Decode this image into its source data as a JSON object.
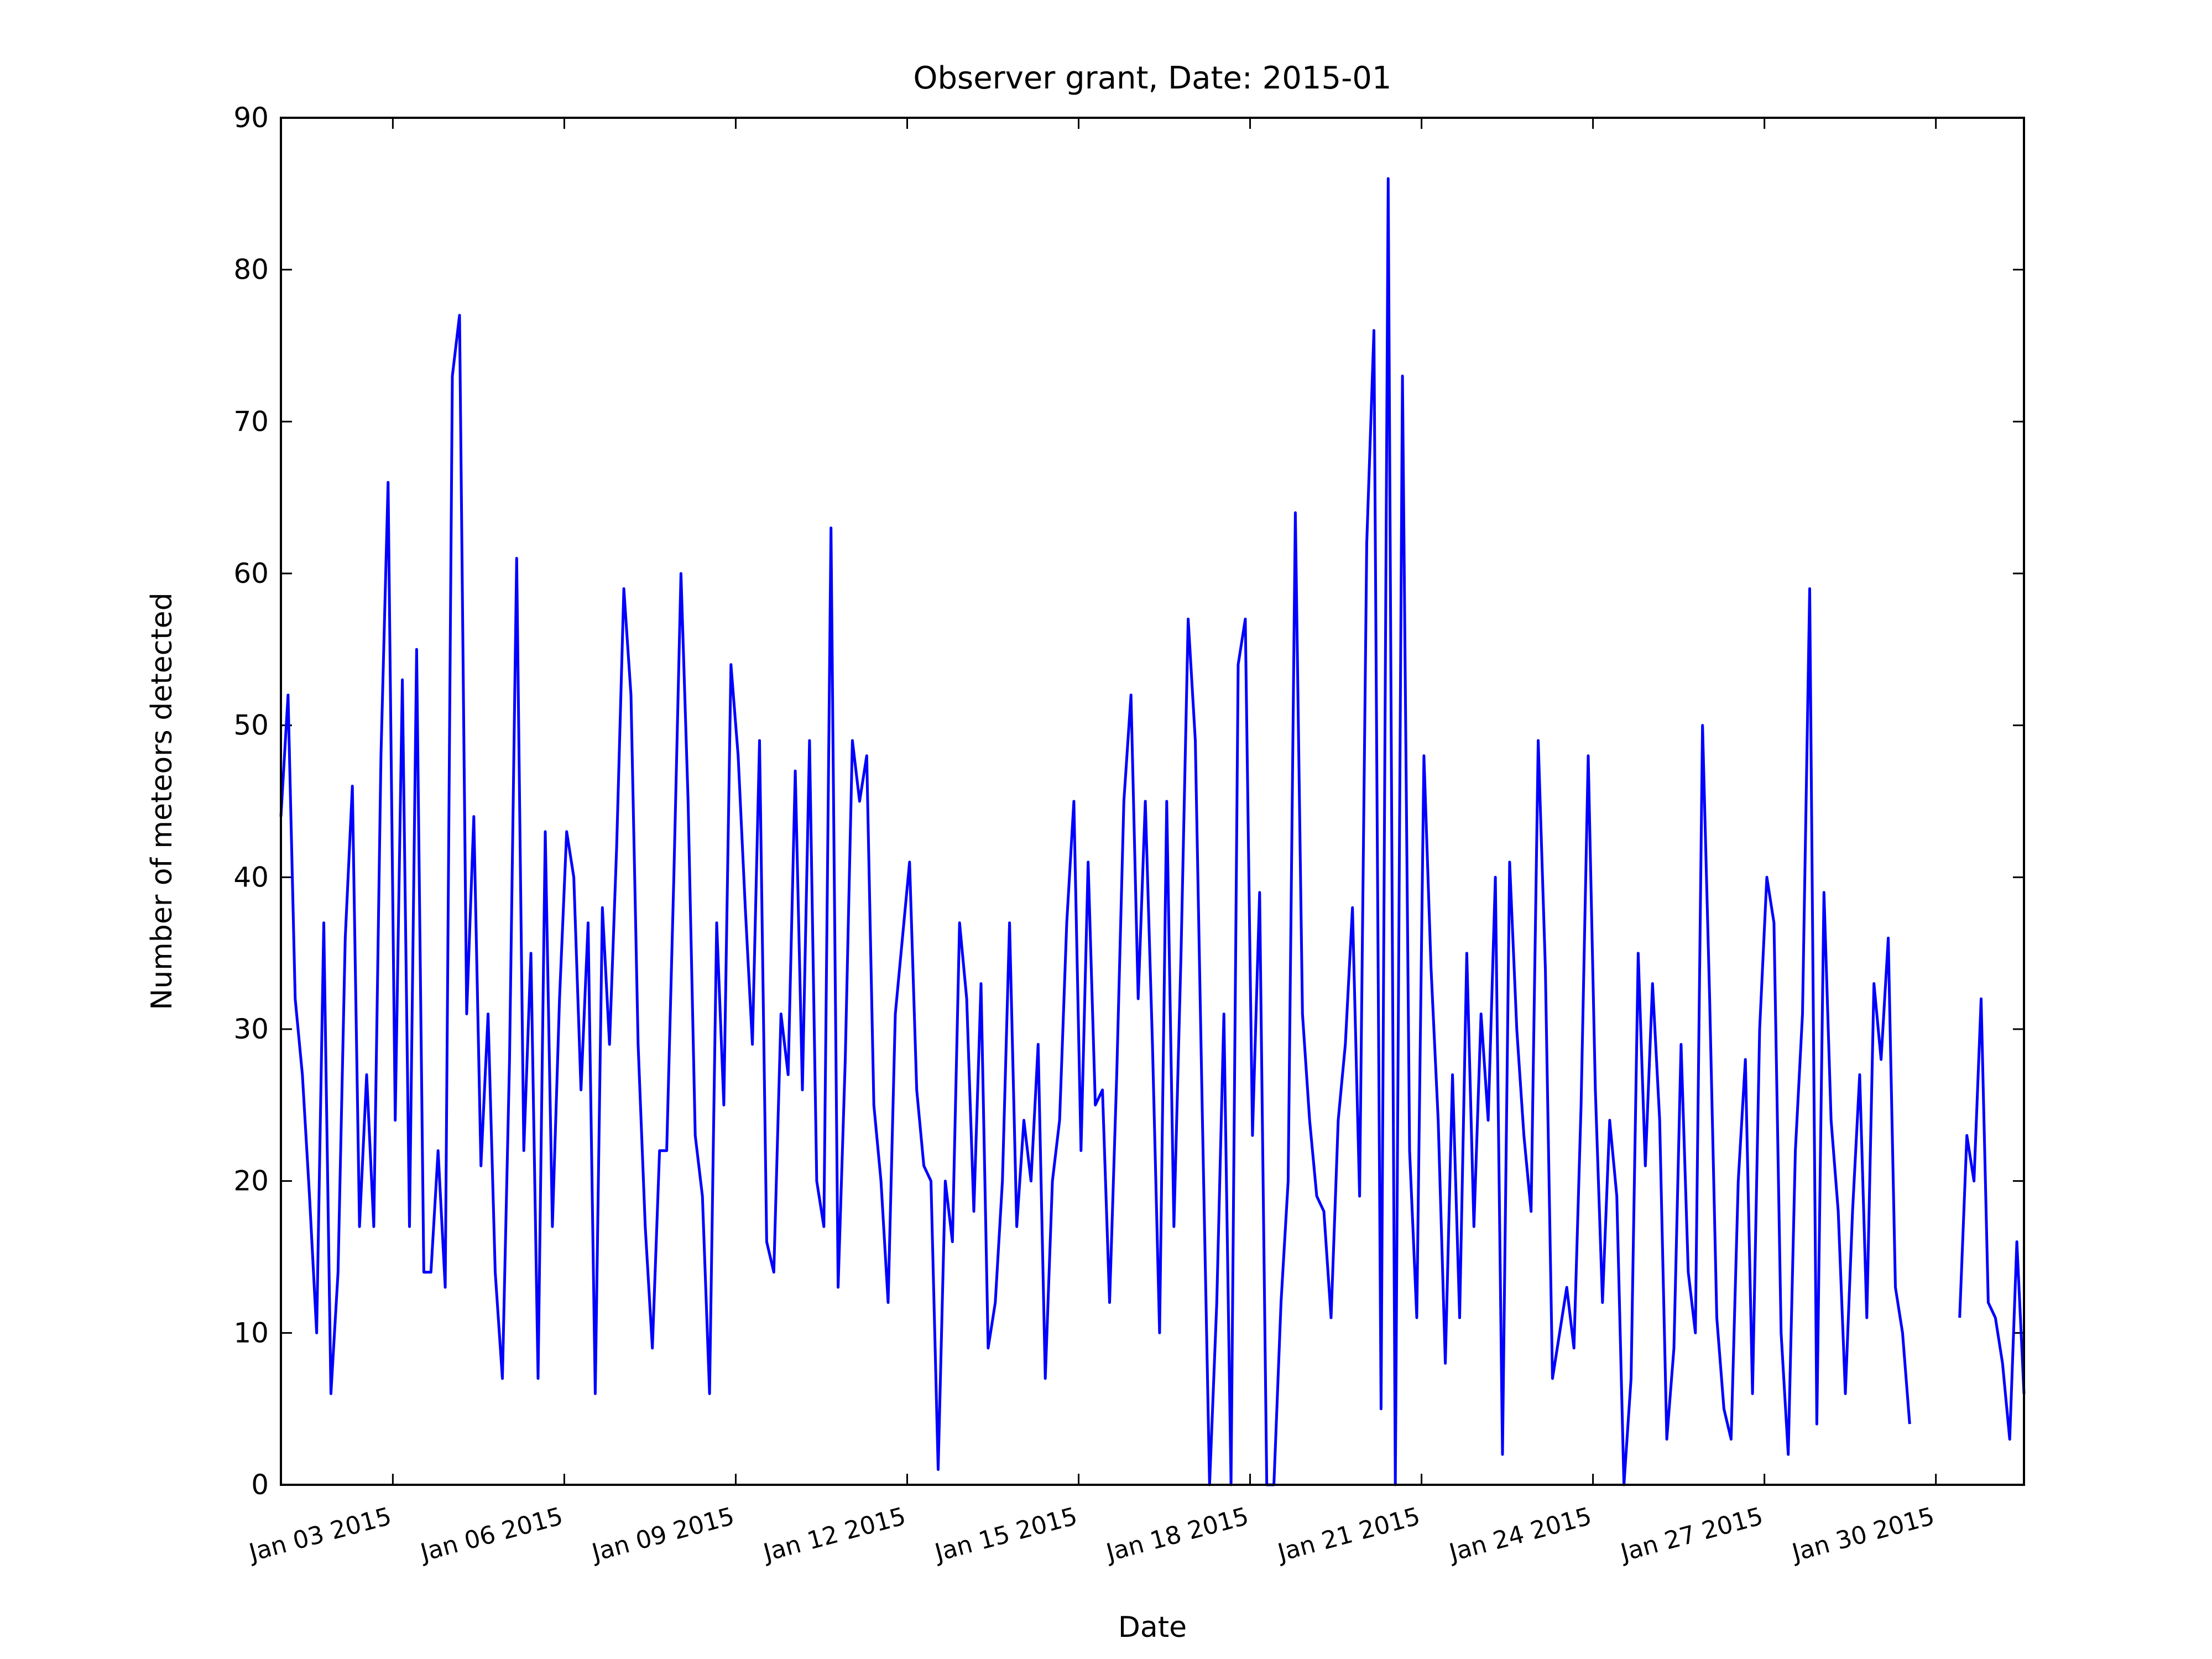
{
  "chart_data": {
    "type": "line",
    "title": "Observer grant, Date: 2015-01",
    "x_label": "Date",
    "y_label": "Number of meteors detected",
    "color": "#0000ff",
    "x": [
      "2015-01-01 01:00",
      "2015-01-01 04:00",
      "2015-01-01 07:00",
      "2015-01-01 10:00",
      "2015-01-01 13:00",
      "2015-01-01 16:00",
      "2015-01-01 19:00",
      "2015-01-01 22:00",
      "2015-01-02 01:00",
      "2015-01-02 04:00",
      "2015-01-02 07:00",
      "2015-01-02 10:00",
      "2015-01-02 13:00",
      "2015-01-02 16:00",
      "2015-01-02 19:00",
      "2015-01-02 22:00",
      "2015-01-03 01:00",
      "2015-01-03 04:00",
      "2015-01-03 07:00",
      "2015-01-03 10:00",
      "2015-01-03 13:00",
      "2015-01-03 16:00",
      "2015-01-03 19:00",
      "2015-01-03 22:00",
      "2015-01-04 01:00",
      "2015-01-04 04:00",
      "2015-01-04 07:00",
      "2015-01-04 10:00",
      "2015-01-04 13:00",
      "2015-01-04 16:00",
      "2015-01-04 19:00",
      "2015-01-04 22:00",
      "2015-01-05 01:00",
      "2015-01-05 04:00",
      "2015-01-05 07:00",
      "2015-01-05 10:00",
      "2015-01-05 13:00",
      "2015-01-05 16:00",
      "2015-01-05 19:00",
      "2015-01-05 22:00",
      "2015-01-06 01:00",
      "2015-01-06 04:00",
      "2015-01-06 07:00",
      "2015-01-06 10:00",
      "2015-01-06 13:00",
      "2015-01-06 16:00",
      "2015-01-06 19:00",
      "2015-01-06 22:00",
      "2015-01-07 01:00",
      "2015-01-07 04:00",
      "2015-01-07 07:00",
      "2015-01-07 10:00",
      "2015-01-07 13:00",
      "2015-01-07 16:00",
      "2015-01-07 19:00",
      "2015-01-07 22:00",
      "2015-01-08 01:00",
      "2015-01-08 04:00",
      "2015-01-08 07:00",
      "2015-01-08 10:00",
      "2015-01-08 13:00",
      "2015-01-08 16:00",
      "2015-01-08 19:00",
      "2015-01-08 22:00",
      "2015-01-09 01:00",
      "2015-01-09 04:00",
      "2015-01-09 07:00",
      "2015-01-09 10:00",
      "2015-01-09 13:00",
      "2015-01-09 16:00",
      "2015-01-09 19:00",
      "2015-01-09 22:00",
      "2015-01-10 01:00",
      "2015-01-10 04:00",
      "2015-01-10 07:00",
      "2015-01-10 10:00",
      "2015-01-10 13:00",
      "2015-01-10 16:00",
      "2015-01-10 19:00",
      "2015-01-10 22:00",
      "2015-01-11 01:00",
      "2015-01-11 04:00",
      "2015-01-11 07:00",
      "2015-01-11 10:00",
      "2015-01-11 13:00",
      "2015-01-11 16:00",
      "2015-01-11 19:00",
      "2015-01-11 22:00",
      "2015-01-12 01:00",
      "2015-01-12 04:00",
      "2015-01-12 07:00",
      "2015-01-12 10:00",
      "2015-01-12 13:00",
      "2015-01-12 16:00",
      "2015-01-12 19:00",
      "2015-01-12 22:00",
      "2015-01-13 01:00",
      "2015-01-13 04:00",
      "2015-01-13 07:00",
      "2015-01-13 10:00",
      "2015-01-13 13:00",
      "2015-01-13 16:00",
      "2015-01-13 19:00",
      "2015-01-13 22:00",
      "2015-01-14 01:00",
      "2015-01-14 04:00",
      "2015-01-14 07:00",
      "2015-01-14 10:00",
      "2015-01-14 13:00",
      "2015-01-14 16:00",
      "2015-01-14 19:00",
      "2015-01-14 22:00",
      "2015-01-15 01:00",
      "2015-01-15 04:00",
      "2015-01-15 07:00",
      "2015-01-15 10:00",
      "2015-01-15 13:00",
      "2015-01-15 16:00",
      "2015-01-15 19:00",
      "2015-01-15 22:00",
      "2015-01-16 01:00",
      "2015-01-16 04:00",
      "2015-01-16 07:00",
      "2015-01-16 10:00",
      "2015-01-16 13:00",
      "2015-01-16 16:00",
      "2015-01-16 19:00",
      "2015-01-16 22:00",
      "2015-01-17 01:00",
      "2015-01-17 04:00",
      "2015-01-17 07:00",
      "2015-01-17 10:00",
      "2015-01-17 13:00",
      "2015-01-17 16:00",
      "2015-01-17 19:00",
      "2015-01-17 22:00",
      "2015-01-18 01:00",
      "2015-01-18 04:00",
      "2015-01-18 07:00",
      "2015-01-18 10:00",
      "2015-01-18 13:00",
      "2015-01-18 16:00",
      "2015-01-18 19:00",
      "2015-01-18 22:00",
      "2015-01-19 01:00",
      "2015-01-19 04:00",
      "2015-01-19 07:00",
      "2015-01-19 10:00",
      "2015-01-19 13:00",
      "2015-01-19 16:00",
      "2015-01-19 19:00",
      "2015-01-19 22:00",
      "2015-01-20 01:00",
      "2015-01-20 04:00",
      "2015-01-20 07:00",
      "2015-01-20 10:00",
      "2015-01-20 13:00",
      "2015-01-20 16:00",
      "2015-01-20 19:00",
      "2015-01-20 22:00",
      "2015-01-21 01:00",
      "2015-01-21 04:00",
      "2015-01-21 07:00",
      "2015-01-21 10:00",
      "2015-01-21 13:00",
      "2015-01-21 16:00",
      "2015-01-21 19:00",
      "2015-01-21 22:00",
      "2015-01-22 01:00",
      "2015-01-22 04:00",
      "2015-01-22 07:00",
      "2015-01-22 10:00",
      "2015-01-22 13:00",
      "2015-01-22 16:00",
      "2015-01-22 19:00",
      "2015-01-22 22:00",
      "2015-01-23 01:00",
      "2015-01-23 04:00",
      "2015-01-23 07:00",
      "2015-01-23 10:00",
      "2015-01-23 13:00",
      "2015-01-23 16:00",
      "2015-01-23 19:00",
      "2015-01-23 22:00",
      "2015-01-24 01:00",
      "2015-01-24 04:00",
      "2015-01-24 07:00",
      "2015-01-24 10:00",
      "2015-01-24 13:00",
      "2015-01-24 16:00",
      "2015-01-24 19:00",
      "2015-01-24 22:00",
      "2015-01-25 01:00",
      "2015-01-25 04:00",
      "2015-01-25 07:00",
      "2015-01-25 10:00",
      "2015-01-25 13:00",
      "2015-01-25 16:00",
      "2015-01-25 19:00",
      "2015-01-25 22:00",
      "2015-01-26 01:00",
      "2015-01-26 04:00",
      "2015-01-26 07:00",
      "2015-01-26 10:00",
      "2015-01-26 13:00",
      "2015-01-26 16:00",
      "2015-01-26 19:00",
      "2015-01-26 22:00",
      "2015-01-27 01:00",
      "2015-01-27 04:00",
      "2015-01-27 07:00",
      "2015-01-27 10:00",
      "2015-01-27 13:00",
      "2015-01-27 16:00",
      "2015-01-27 19:00",
      "2015-01-27 22:00",
      "2015-01-28 01:00",
      "2015-01-28 04:00",
      "2015-01-28 07:00",
      "2015-01-28 10:00",
      "2015-01-28 13:00",
      "2015-01-28 16:00",
      "2015-01-28 19:00",
      "2015-01-28 22:00",
      "2015-01-29 01:00",
      "2015-01-29 04:00",
      "2015-01-29 07:00",
      "2015-01-29 10:00",
      "2015-01-29 13:00",
      "2015-01-29 16:00",
      "2015-01-29 19:00",
      "2015-01-29 22:00",
      "2015-01-30 01:00",
      "2015-01-30 04:00",
      "2015-01-30 07:00",
      "2015-01-30 10:00",
      "2015-01-30 13:00",
      "2015-01-30 16:00",
      "2015-01-30 19:00",
      "2015-01-30 22:00",
      "2015-01-31 01:00",
      "2015-01-31 04:00",
      "2015-01-31 07:00",
      "2015-01-31 10:00",
      "2015-01-31 13:00"
    ],
    "values": [
      44,
      52,
      32,
      27,
      19,
      10,
      37,
      6,
      14,
      36,
      46,
      17,
      27,
      17,
      48,
      66,
      24,
      53,
      17,
      55,
      14,
      14,
      22,
      13,
      73,
      77,
      31,
      44,
      21,
      31,
      14,
      7,
      28,
      61,
      22,
      35,
      7,
      43,
      17,
      32,
      43,
      40,
      26,
      37,
      6,
      38,
      29,
      42,
      59,
      52,
      29,
      17,
      9,
      22,
      22,
      40,
      60,
      45,
      23,
      19,
      6,
      37,
      25,
      54,
      48,
      38,
      29,
      49,
      16,
      14,
      31,
      27,
      47,
      26,
      49,
      20,
      17,
      63,
      13,
      28,
      49,
      45,
      48,
      25,
      20,
      12,
      31,
      36,
      41,
      26,
      21,
      20,
      1,
      20,
      16,
      37,
      32,
      18,
      33,
      9,
      12,
      20,
      37,
      17,
      24,
      20,
      29,
      7,
      20,
      24,
      37,
      45,
      22,
      41,
      25,
      26,
      12,
      27,
      45,
      52,
      32,
      45,
      29,
      10,
      45,
      17,
      35,
      57,
      49,
      24,
      0,
      12,
      31,
      0,
      54,
      57,
      23,
      39,
      0,
      0,
      12,
      20,
      64,
      31,
      24,
      19,
      18,
      11,
      24,
      29,
      38,
      19,
      62,
      76,
      5,
      86,
      0,
      73,
      22,
      11,
      48,
      34,
      24,
      8,
      27,
      11,
      35,
      17,
      31,
      24,
      40,
      2,
      41,
      30,
      23,
      18,
      49,
      34,
      7,
      10,
      13,
      9,
      25,
      48,
      26,
      12,
      24,
      19,
      0,
      7,
      35,
      21,
      33,
      24,
      3,
      9,
      29,
      14,
      10,
      50,
      32,
      11,
      5,
      3,
      20,
      28,
      6,
      30,
      40,
      37,
      10,
      2,
      22,
      31,
      59,
      4,
      39,
      24,
      18,
      6,
      18,
      27,
      11,
      33,
      28,
      36,
      13,
      10,
      4,
      null,
      null,
      null,
      null,
      null,
      null,
      11,
      23,
      20,
      32,
      12,
      11,
      8,
      3,
      16,
      6
    ],
    "xlim": [
      "2015-01-01 01:00",
      "2015-01-31 13:00"
    ],
    "xticks": [
      {
        "value": "2015-01-03",
        "label": "Jan 03 2015"
      },
      {
        "value": "2015-01-06",
        "label": "Jan 06 2015"
      },
      {
        "value": "2015-01-09",
        "label": "Jan 09 2015"
      },
      {
        "value": "2015-01-12",
        "label": "Jan 12 2015"
      },
      {
        "value": "2015-01-15",
        "label": "Jan 15 2015"
      },
      {
        "value": "2015-01-18",
        "label": "Jan 18 2015"
      },
      {
        "value": "2015-01-21",
        "label": "Jan 21 2015"
      },
      {
        "value": "2015-01-24",
        "label": "Jan 24 2015"
      },
      {
        "value": "2015-01-27",
        "label": "Jan 27 2015"
      },
      {
        "value": "2015-01-30",
        "label": "Jan 30 2015"
      }
    ],
    "ylim": [
      0,
      90
    ],
    "yticks": [
      0,
      10,
      20,
      30,
      40,
      50,
      60,
      70,
      80,
      90
    ],
    "grid": false
  }
}
